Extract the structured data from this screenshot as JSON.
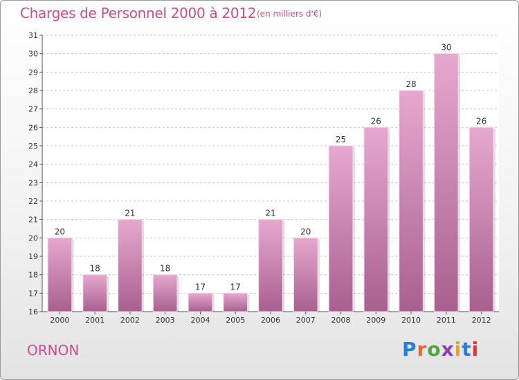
{
  "header": {
    "title": "Charges de Personnel 2000 à 2012",
    "subtitle": "(en milliers d'€)"
  },
  "footer": {
    "commune": "ORNON",
    "brand": "Proxiti",
    "brand_letter_colors": [
      "#2a7fd4",
      "#e8662b",
      "#4aa83c",
      "#8b3fb5",
      "#e8a21b",
      "#2a7fd4",
      "#d63b3b"
    ]
  },
  "colors": {
    "bar_top": "#e6a8cf",
    "bar_bottom": "#a8608f",
    "accent": "#cc4c8c"
  },
  "chart_data": {
    "type": "bar",
    "categories": [
      "2000",
      "2001",
      "2002",
      "2003",
      "2004",
      "2005",
      "2006",
      "2007",
      "2008",
      "2009",
      "2010",
      "2011",
      "2012"
    ],
    "values": [
      20,
      18,
      21,
      18,
      17,
      17,
      21,
      20,
      25,
      26,
      28,
      30,
      26
    ],
    "ylim": [
      16,
      31
    ],
    "yticks": [
      16,
      17,
      18,
      19,
      20,
      21,
      22,
      23,
      24,
      25,
      26,
      27,
      28,
      29,
      30,
      31
    ],
    "grid": true,
    "data_labels": true
  }
}
